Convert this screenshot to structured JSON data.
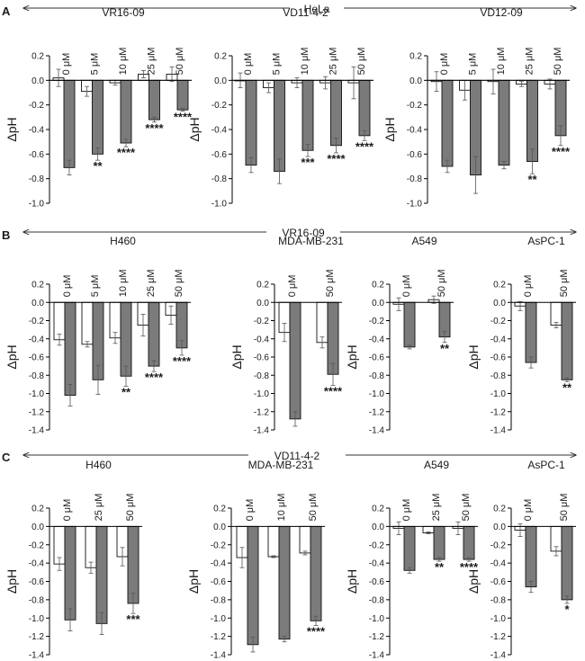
{
  "figure": {
    "panel_letters": [
      "A",
      "B",
      "C"
    ],
    "section_headers": [
      "HeLa",
      "VR16-09",
      "VD11-4-2"
    ]
  },
  "chart_data": [
    {
      "type": "bar",
      "panel": "A",
      "title": "VR16-09",
      "ylabel": "ΔpH",
      "ylim": [
        -1.0,
        0.2
      ],
      "yticks": [
        0.2,
        0.0,
        -0.2,
        -0.4,
        -0.6,
        -0.8,
        -1.0
      ],
      "categories": [
        "0 μM",
        "5 μM",
        "10 μM",
        "25 μM",
        "50 μM"
      ],
      "series": [
        {
          "color": "#ffffff",
          "values": [
            0.02,
            -0.09,
            -0.02,
            0.05,
            0.05
          ],
          "errors": [
            0.07,
            0.04,
            0.02,
            0.03,
            0.06
          ]
        },
        {
          "color": "#7b7b7b",
          "values": [
            -0.71,
            -0.6,
            -0.51,
            -0.32,
            -0.24
          ],
          "errors": [
            0.06,
            0.05,
            0.03,
            0.02,
            0.01
          ]
        }
      ],
      "significance": [
        "",
        "**",
        "****",
        "****",
        "****"
      ]
    },
    {
      "type": "bar",
      "panel": "A",
      "title": "VD11-4-2",
      "ylabel": "ΔpH",
      "ylim": [
        -1.0,
        0.2
      ],
      "yticks": [
        0.2,
        0.0,
        -0.2,
        -0.4,
        -0.6,
        -0.8,
        -1.0
      ],
      "categories": [
        "0 μM",
        "5 μM",
        "10 μM",
        "25 μM",
        "50 μM"
      ],
      "series": [
        {
          "color": "#ffffff",
          "values": [
            0.0,
            -0.06,
            -0.02,
            -0.02,
            -0.02
          ],
          "errors": [
            0.06,
            0.04,
            0.04,
            0.05,
            0.13
          ]
        },
        {
          "color": "#7b7b7b",
          "values": [
            -0.69,
            -0.74,
            -0.57,
            -0.53,
            -0.45
          ],
          "errors": [
            0.06,
            0.1,
            0.05,
            0.06,
            0.04
          ]
        }
      ],
      "significance": [
        "",
        "",
        "***",
        "****",
        "****"
      ]
    },
    {
      "type": "bar",
      "panel": "A",
      "title": "VD12-09",
      "ylabel": "ΔpH",
      "ylim": [
        -1.0,
        0.2
      ],
      "yticks": [
        0.2,
        0.0,
        -0.2,
        -0.4,
        -0.6,
        -0.8,
        -1.0
      ],
      "categories": [
        "0 μM",
        "5 μM",
        "10 μM",
        "25 μM",
        "50 μM"
      ],
      "series": [
        {
          "color": "#ffffff",
          "values": [
            -0.01,
            -0.08,
            -0.01,
            -0.03,
            -0.03
          ],
          "errors": [
            0.08,
            0.08,
            0.1,
            0.02,
            0.04
          ]
        },
        {
          "color": "#7b7b7b",
          "values": [
            -0.7,
            -0.77,
            -0.69,
            -0.66,
            -0.45
          ],
          "errors": [
            0.05,
            0.15,
            0.03,
            0.1,
            0.08
          ]
        }
      ],
      "significance": [
        "",
        "",
        "",
        "**",
        "****"
      ]
    },
    {
      "type": "bar",
      "panel": "B",
      "title": "H460",
      "ylabel": "ΔpH",
      "ylim": [
        -1.4,
        0.2
      ],
      "yticks": [
        0.2,
        0.0,
        -0.2,
        -0.4,
        -0.6,
        -0.8,
        -1.0,
        -1.2,
        -1.4
      ],
      "categories": [
        "0 μM",
        "5 μM",
        "10 μM",
        "25 μM",
        "50 μM"
      ],
      "series": [
        {
          "color": "#ffffff",
          "values": [
            -0.41,
            -0.46,
            -0.39,
            -0.25,
            -0.14
          ],
          "errors": [
            0.06,
            0.03,
            0.06,
            0.12,
            0.1
          ]
        },
        {
          "color": "#7b7b7b",
          "values": [
            -1.02,
            -0.85,
            -0.81,
            -0.7,
            -0.5
          ],
          "errors": [
            0.12,
            0.16,
            0.11,
            0.06,
            0.08
          ]
        }
      ],
      "significance": [
        "",
        "",
        "**",
        "****",
        "****"
      ]
    },
    {
      "type": "bar",
      "panel": "B",
      "title": "MDA-MB-231",
      "ylabel": "ΔpH",
      "ylim": [
        -1.4,
        0.2
      ],
      "yticks": [
        0.2,
        0.0,
        -0.2,
        -0.4,
        -0.6,
        -0.8,
        -1.0,
        -1.2,
        -1.4
      ],
      "categories": [
        "0 μM",
        "50 μM"
      ],
      "series": [
        {
          "color": "#ffffff",
          "values": [
            -0.33,
            -0.44
          ],
          "errors": [
            0.1,
            0.06
          ]
        },
        {
          "color": "#7b7b7b",
          "values": [
            -1.28,
            -0.79
          ],
          "errors": [
            0.08,
            0.12
          ]
        }
      ],
      "significance": [
        "",
        "****"
      ]
    },
    {
      "type": "bar",
      "panel": "B",
      "title": "A549",
      "ylabel": "ΔpH",
      "ylim": [
        -1.4,
        0.2
      ],
      "yticks": [
        0.2,
        0.0,
        -0.2,
        -0.4,
        -0.6,
        -0.8,
        -1.0,
        -1.2,
        -1.4
      ],
      "categories": [
        "0 μM",
        "50 μM"
      ],
      "series": [
        {
          "color": "#ffffff",
          "values": [
            -0.02,
            0.03
          ],
          "errors": [
            0.07,
            0.04
          ]
        },
        {
          "color": "#7b7b7b",
          "values": [
            -0.49,
            -0.38
          ],
          "errors": [
            0.02,
            0.06
          ]
        }
      ],
      "significance": [
        "",
        "**"
      ]
    },
    {
      "type": "bar",
      "panel": "B",
      "title": "AsPC-1",
      "ylabel": "ΔpH",
      "ylim": [
        -1.4,
        0.2
      ],
      "yticks": [
        0.2,
        0.0,
        -0.2,
        -0.4,
        -0.6,
        -0.8,
        -1.0,
        -1.2,
        -1.4
      ],
      "categories": [
        "0 μM",
        "50 μM"
      ],
      "series": [
        {
          "color": "#ffffff",
          "values": [
            -0.04,
            -0.25
          ],
          "errors": [
            0.05,
            0.03
          ]
        },
        {
          "color": "#7b7b7b",
          "values": [
            -0.66,
            -0.85
          ],
          "errors": [
            0.06,
            0.02
          ]
        }
      ],
      "significance": [
        "",
        "**"
      ]
    },
    {
      "type": "bar",
      "panel": "C",
      "title": "H460",
      "ylabel": "ΔpH",
      "ylim": [
        -1.4,
        0.2
      ],
      "yticks": [
        0.2,
        0.0,
        -0.2,
        -0.4,
        -0.6,
        -0.8,
        -1.0,
        -1.2,
        -1.4
      ],
      "categories": [
        "0 μM",
        "25 μM",
        "50 μM"
      ],
      "series": [
        {
          "color": "#ffffff",
          "values": [
            -0.41,
            -0.45,
            -0.33
          ],
          "errors": [
            0.07,
            0.06,
            0.1
          ]
        },
        {
          "color": "#7b7b7b",
          "values": [
            -1.02,
            -1.06,
            -0.84
          ],
          "errors": [
            0.12,
            0.12,
            0.11
          ]
        }
      ],
      "significance": [
        "",
        "",
        "***"
      ]
    },
    {
      "type": "bar",
      "panel": "C",
      "title": "MDA-MB-231",
      "ylabel": "ΔpH",
      "ylim": [
        -1.4,
        0.2
      ],
      "yticks": [
        0.2,
        0.0,
        -0.2,
        -0.4,
        -0.6,
        -0.8,
        -1.0,
        -1.2,
        -1.4
      ],
      "categories": [
        "0 μM",
        "10 μM",
        "50 μM"
      ],
      "series": [
        {
          "color": "#ffffff",
          "values": [
            -0.34,
            -0.33,
            -0.29
          ],
          "errors": [
            0.11,
            0.01,
            0.02
          ]
        },
        {
          "color": "#7b7b7b",
          "values": [
            -1.29,
            -1.23,
            -1.03
          ],
          "errors": [
            0.08,
            0.03,
            0.05
          ]
        }
      ],
      "significance": [
        "",
        "",
        "****"
      ]
    },
    {
      "type": "bar",
      "panel": "C",
      "title": "A549",
      "ylabel": "ΔpH",
      "ylim": [
        -1.4,
        0.2
      ],
      "yticks": [
        0.2,
        0.0,
        -0.2,
        -0.4,
        -0.6,
        -0.8,
        -1.0,
        -1.2,
        -1.4
      ],
      "categories": [
        "0 μM",
        "25 μM",
        "50 μM"
      ],
      "series": [
        {
          "color": "#ffffff",
          "values": [
            -0.02,
            -0.07,
            -0.02
          ],
          "errors": [
            0.07,
            0.01,
            0.07
          ]
        },
        {
          "color": "#7b7b7b",
          "values": [
            -0.48,
            -0.36,
            -0.36
          ],
          "errors": [
            0.03,
            0.02,
            0.02
          ]
        }
      ],
      "significance": [
        "",
        "**",
        "****"
      ]
    },
    {
      "type": "bar",
      "panel": "C",
      "title": "AsPC-1",
      "ylabel": "ΔpH",
      "ylim": [
        -1.4,
        0.2
      ],
      "yticks": [
        0.2,
        0.0,
        -0.2,
        -0.4,
        -0.6,
        -0.8,
        -1.0,
        -1.2,
        -1.4
      ],
      "categories": [
        "0 μM",
        "50 μM"
      ],
      "series": [
        {
          "color": "#ffffff",
          "values": [
            -0.04,
            -0.27
          ],
          "errors": [
            0.07,
            0.05
          ]
        },
        {
          "color": "#7b7b7b",
          "values": [
            -0.66,
            -0.8
          ],
          "errors": [
            0.06,
            0.04
          ]
        }
      ],
      "significance": [
        "",
        "*"
      ]
    }
  ]
}
